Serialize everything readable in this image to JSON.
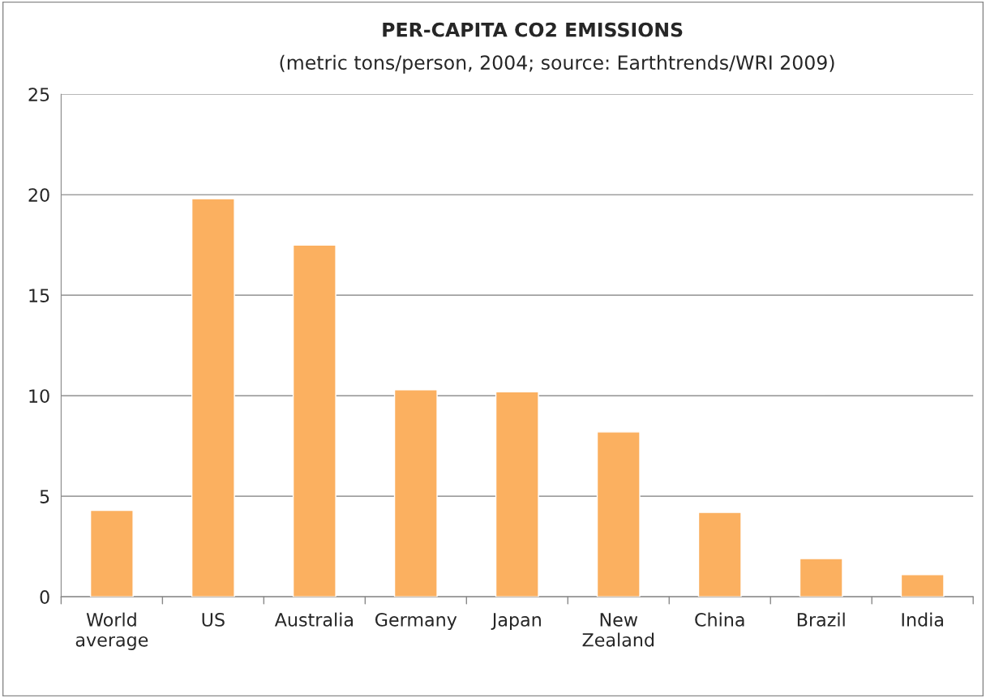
{
  "chart_data": {
    "type": "bar",
    "title": "PER-CAPITA CO2 EMISSIONS",
    "subtitle": "(metric tons/person, 2004; source: Earthtrends/WRI 2009)",
    "categories": [
      "World\naverage",
      "US",
      "Australia",
      "Germany",
      "Japan",
      "New\nZealand",
      "China",
      "Brazil",
      "India"
    ],
    "values": [
      4.3,
      19.8,
      17.5,
      10.3,
      10.2,
      8.2,
      4.2,
      1.9,
      1.1
    ],
    "color": "#fbb060",
    "ylim": [
      0,
      25
    ],
    "yticks": [
      0,
      5,
      10,
      15,
      20,
      25
    ],
    "grid": "y",
    "legend": false
  }
}
